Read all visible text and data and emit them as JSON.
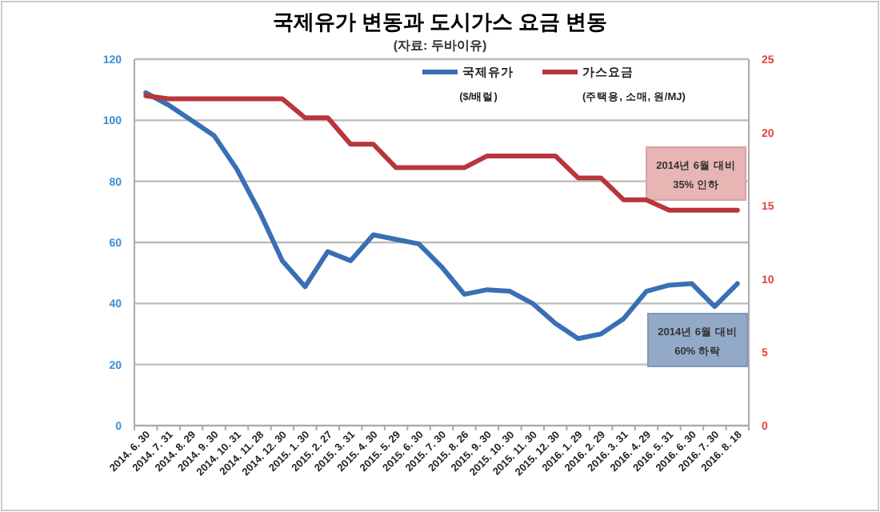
{
  "chart_data": {
    "type": "line",
    "title": "국제유가 변동과 도시가스 요금 변동",
    "subtitle": "(자료: 두바이유)",
    "categories": [
      "2014. 6. 30",
      "2014. 7. 31",
      "2014. 8. 29",
      "2014. 9. 30",
      "2014. 10. 31",
      "2014. 11. 28",
      "2014. 12. 30",
      "2015. 1. 30",
      "2015. 2. 27",
      "2015. 3. 31",
      "2015. 4. 30",
      "2015. 5. 29",
      "2015. 6. 30",
      "2015. 7. 30",
      "2015. 8. 26",
      "2015. 9. 30",
      "2015. 10. 30",
      "2015. 11. 30",
      "2015. 12. 30",
      "2016. 1. 29",
      "2016. 2. 29",
      "2016. 3. 31",
      "2016. 4. 29",
      "2016. 5. 31",
      "2016. 6. 30",
      "2016. 7. 30",
      "2016. 8. 18"
    ],
    "series": [
      {
        "name": "국제유가\n($/배럴)",
        "color": "#3a6fb5",
        "values": [
          109,
          105,
          100,
          95,
          84,
          70,
          54,
          45.5,
          57,
          54,
          62.5,
          61,
          59.5,
          52,
          43,
          44.5,
          44,
          40,
          33.5,
          28.5,
          30,
          35,
          44,
          46,
          46.5,
          39,
          46.5
        ]
      },
      {
        "name": "가스요금\n(주택용, 소매, 원/MJ)",
        "color": "#b8363a",
        "axis": "y2",
        "values": [
          22.5,
          22.3,
          22.3,
          22.3,
          22.3,
          22.3,
          22.3,
          21,
          21,
          19.2,
          19.2,
          17.6,
          17.6,
          17.6,
          17.6,
          18.4,
          18.4,
          18.4,
          18.4,
          16.9,
          16.9,
          15.4,
          15.4,
          14.7,
          14.7,
          14.7,
          14.7
        ]
      }
    ],
    "ylim": [
      0,
      120
    ],
    "yticks": [
      0,
      20,
      40,
      60,
      80,
      100,
      120
    ],
    "y2lim": [
      0,
      25
    ],
    "y2ticks": [
      0,
      5,
      10,
      15,
      20,
      25
    ],
    "grid": "y",
    "legend": "top",
    "marker": "none",
    "line_style": "solid",
    "annotations": [
      "2014년 6월 대비\n35% 인하",
      "2014년 6월 대비\n60% 하락"
    ]
  }
}
